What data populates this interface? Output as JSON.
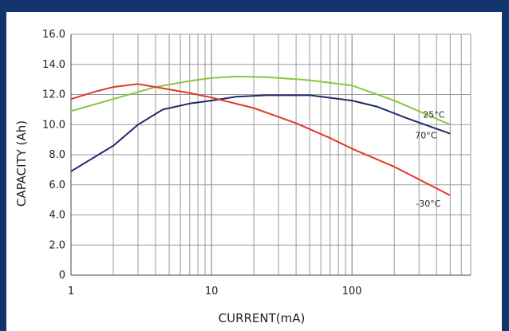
{
  "chart_data": {
    "type": "line",
    "xlabel": "CURRENT(mA)",
    "ylabel": "CAPACITY (Ah)",
    "xscale": "log",
    "xlim": [
      1,
      700
    ],
    "ylim": [
      0,
      16.0
    ],
    "grid": true,
    "x_tick_labels": [
      "1",
      "10",
      "100"
    ],
    "y_tick_labels": [
      "16.0",
      "14.0",
      "12.0",
      "10.0",
      "8.0",
      "6.0",
      "4.0",
      "2.0",
      "0"
    ],
    "series": [
      {
        "name": "25°C",
        "color": "#8cc63f",
        "x": [
          1,
          2,
          4,
          7,
          10,
          15,
          25,
          50,
          100,
          200,
          500
        ],
        "y": [
          10.9,
          11.7,
          12.5,
          12.9,
          13.1,
          13.2,
          13.15,
          12.95,
          12.6,
          11.6,
          10.0
        ]
      },
      {
        "name": "70°C",
        "color": "#1f2a6e",
        "x": [
          1,
          2,
          3,
          4.5,
          7,
          10,
          15,
          25,
          50,
          100,
          150,
          250,
          500
        ],
        "y": [
          6.9,
          8.6,
          10.0,
          11.0,
          11.4,
          11.6,
          11.85,
          11.95,
          11.95,
          11.6,
          11.2,
          10.4,
          9.4
        ]
      },
      {
        "name": "-30°C",
        "color": "#e03a2a",
        "x": [
          1,
          1.5,
          2,
          3,
          4,
          7,
          10,
          20,
          40,
          70,
          100,
          200,
          500
        ],
        "y": [
          11.7,
          12.2,
          12.5,
          12.7,
          12.5,
          12.1,
          11.8,
          11.1,
          10.1,
          9.1,
          8.4,
          7.2,
          5.3
        ]
      }
    ]
  }
}
